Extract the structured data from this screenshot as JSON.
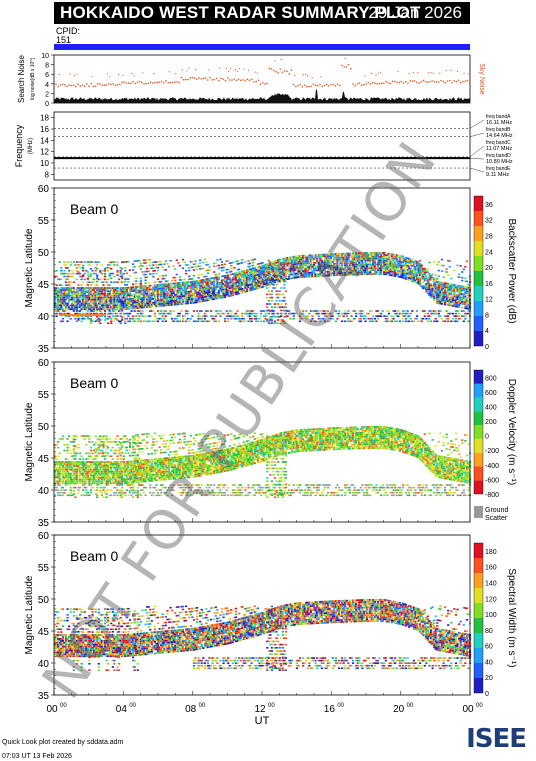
{
  "title": "HOKKAIDO WEST RADAR SUMMARY PLOT",
  "date": "29 Jan 2026",
  "cpid_label": "CPID:",
  "cpid_value": "151",
  "colors": {
    "cpid_bar": "#1f1fff",
    "noise_points": "#e8581c",
    "sky_noise": "#e8581c"
  },
  "noise_panel": {
    "ylabel": "Search Noise",
    "ylabel2": "log noise[dB x 10^]",
    "right_label": "Sky Noise",
    "yticks": [
      "0",
      "2",
      "4",
      "6",
      "8",
      "10"
    ]
  },
  "freq_panel": {
    "ylabel": "Frequency",
    "ylabel_unit": "(MHz)",
    "yticks": [
      "8",
      "10",
      "12",
      "14",
      "16",
      "18"
    ],
    "bands": [
      {
        "name": "freq bandA",
        "value": "16.11 MHz"
      },
      {
        "name": "freq bandB",
        "value": "14.64 MHz"
      },
      {
        "name": "freq bandC",
        "value": "11.07 MHz"
      },
      {
        "name": "freq bandD",
        "value": "10.80 MHz"
      },
      {
        "name": "freq bandE",
        "value": "9.11 MHz"
      }
    ]
  },
  "panels": [
    {
      "beam": "Beam  0",
      "ylabel": "Magnetic Latitude",
      "yticks": [
        "35",
        "40",
        "45",
        "50",
        "55",
        "60"
      ],
      "cbar_label": "Backscatter Power (dB)",
      "cbar_ticks": [
        "0",
        "4",
        "8",
        "12",
        "16",
        "20",
        "24",
        "28",
        "32",
        "36"
      ]
    },
    {
      "beam": "Beam  0",
      "ylabel": "Magnetic Latitude",
      "yticks": [
        "35",
        "40",
        "45",
        "50",
        "55",
        "60"
      ],
      "cbar_label": "Doppler Velocity (m s⁻¹)",
      "cbar_ticks": [
        "-800",
        "-600",
        "-400",
        "-200",
        "0",
        "200",
        "400",
        "600",
        "800"
      ],
      "ground_label": "Ground",
      "ground_label2": "Scatter"
    },
    {
      "beam": "Beam  0",
      "ylabel": "Magnetic Latitude",
      "yticks": [
        "35",
        "40",
        "45",
        "50",
        "55",
        "60"
      ],
      "cbar_label": "Spectral Width (m s⁻¹)",
      "cbar_ticks": [
        "0",
        "20",
        "40",
        "60",
        "80",
        "100",
        "120",
        "140",
        "160",
        "180"
      ]
    }
  ],
  "xaxis": {
    "label": "UT",
    "ticks": [
      "00",
      "04",
      "08",
      "12",
      "16",
      "20",
      "00"
    ],
    "tick_sup": "00"
  },
  "watermark": "NOT FOR PUBLICATION",
  "footer": {
    "line1": "Quick Look plot created by sddata.adm",
    "line2": "07:03  UT  13 Feb 2026"
  },
  "logo": "ISEE",
  "chart_data": {
    "type": "heatmap",
    "x_range_hours": [
      0,
      24
    ],
    "y_range_mlat": [
      35,
      60
    ],
    "echo_boundary": {
      "x": [
        0,
        2,
        4,
        6,
        8,
        10,
        12,
        13,
        14,
        16,
        18,
        19,
        20,
        21,
        22,
        23,
        24
      ],
      "upper": [
        49,
        49,
        49,
        49,
        49,
        49,
        49,
        49,
        49,
        49,
        49,
        49,
        49,
        49,
        49,
        49,
        49
      ],
      "lower_edge": [
        42,
        42,
        42,
        42.5,
        43,
        44,
        45.5,
        46.5,
        47,
        47.3,
        47.5,
        47.5,
        47,
        46,
        43,
        42.5,
        42
      ]
    },
    "noise_levels": {
      "search_noise_approx": 3,
      "sky_noise_approx": 4
    }
  }
}
